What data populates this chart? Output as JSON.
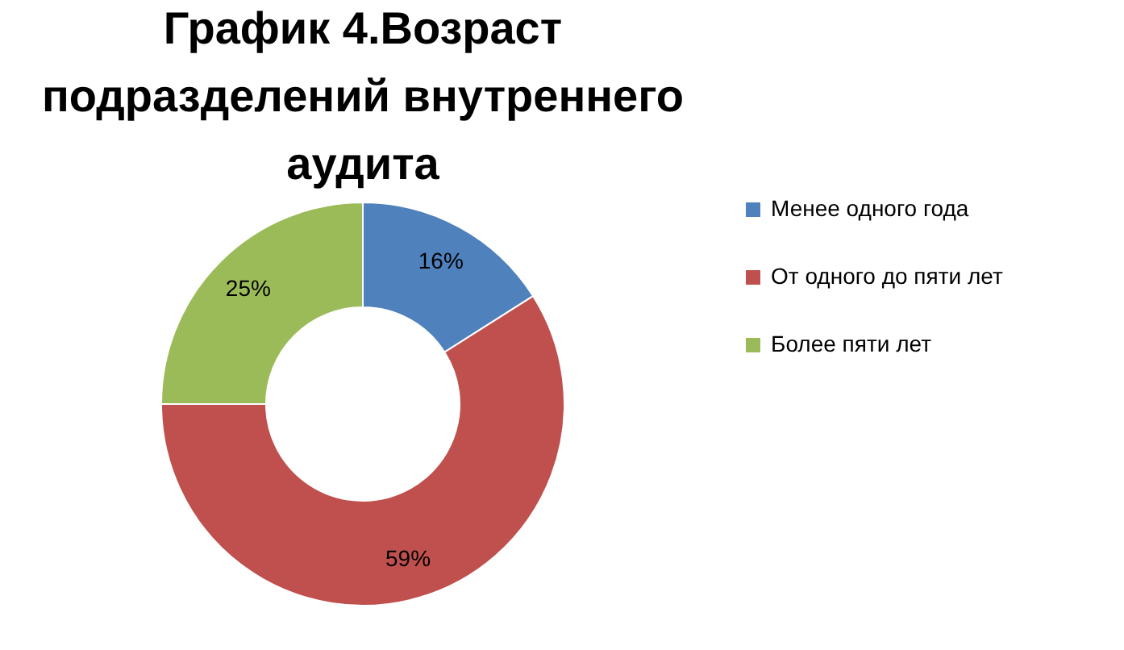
{
  "chart_data": {
    "type": "donut",
    "title": "График 4.Возраст подразделений внутреннего аудита",
    "categories": [
      "Менее одного года",
      "От одного до пяти лет",
      "Более пяти лет"
    ],
    "values": [
      16,
      59,
      25
    ],
    "colors": [
      "#4f81bd",
      "#c0504d",
      "#9bbb59"
    ],
    "value_labels": [
      "16%",
      "59%",
      "25%"
    ],
    "legend": "right"
  }
}
